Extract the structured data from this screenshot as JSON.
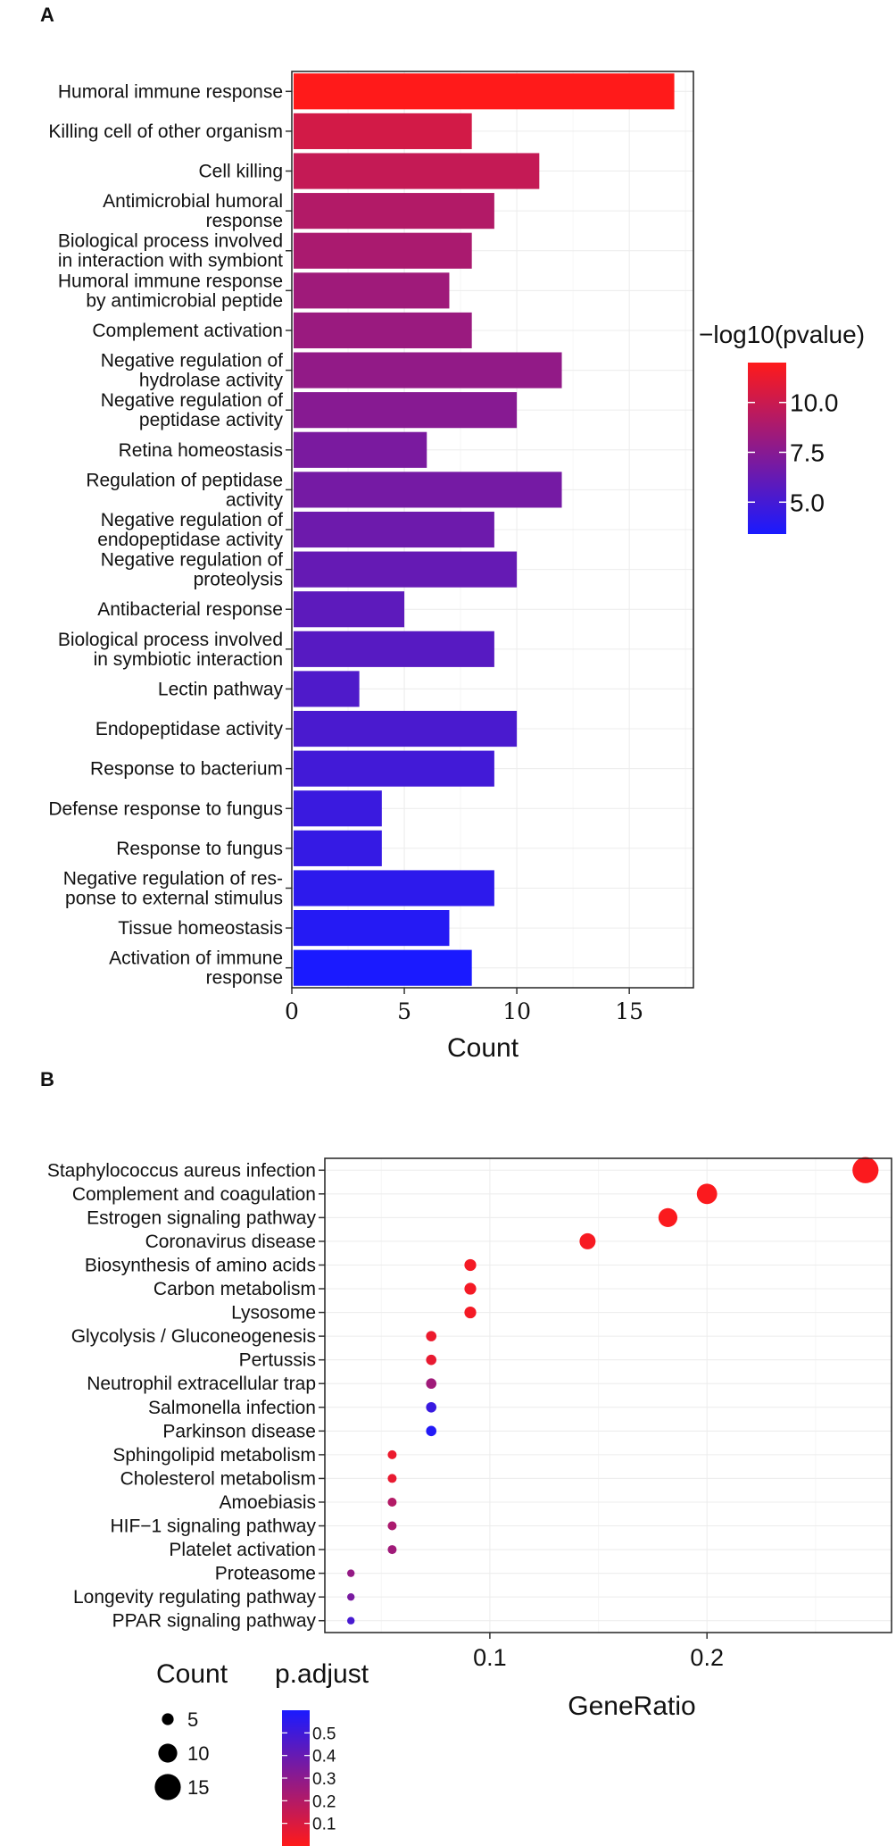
{
  "chart_data": [
    {
      "panel_label": "A",
      "type": "bar",
      "orientation": "horizontal",
      "categories": [
        [
          "Humoral immune response"
        ],
        [
          "Killing cell of other organism"
        ],
        [
          "Cell killing"
        ],
        [
          "Antimicrobial humoral",
          "response"
        ],
        [
          "Biological process involved",
          "in interaction with symbiont"
        ],
        [
          "Humoral immune response",
          "by antimicrobial peptide"
        ],
        [
          "Complement activation"
        ],
        [
          "Negative regulation of",
          "hydrolase activity"
        ],
        [
          "Negative regulation of",
          "peptidase activity"
        ],
        [
          "Retina homeostasis"
        ],
        [
          "Regulation of peptidase",
          "activity"
        ],
        [
          "Negative regulation of",
          "endopeptidase activity"
        ],
        [
          "Negative regulation of",
          "proteolysis"
        ],
        [
          "Antibacterial response"
        ],
        [
          "Biological process involved",
          "in symbiotic interaction"
        ],
        [
          "Lectin pathway"
        ],
        [
          "Endopeptidase activity"
        ],
        [
          "Response to bacterium"
        ],
        [
          "Defense response to fungus"
        ],
        [
          "Response to fungus"
        ],
        [
          "Negative regulation of res-",
          "ponse to external stimulus"
        ],
        [
          "Tissue homeostasis"
        ],
        [
          "Activation of immune",
          "response"
        ]
      ],
      "values": [
        17,
        8,
        11,
        9,
        8,
        7,
        8,
        12,
        10,
        6,
        12,
        9,
        10,
        5,
        9,
        3,
        10,
        9,
        4,
        4,
        9,
        7,
        8
      ],
      "color_values": [
        12.0,
        10.3,
        9.8,
        9.1,
        8.8,
        8.4,
        8.2,
        7.9,
        7.5,
        7.0,
        6.8,
        6.5,
        6.2,
        5.9,
        5.7,
        5.4,
        5.2,
        4.9,
        4.6,
        4.4,
        4.1,
        3.8,
        3.4
      ],
      "xlabel": "Count",
      "xlim": [
        0,
        17.85
      ],
      "xticks": [
        0,
        5,
        10,
        15
      ],
      "legend": {
        "title": "−log10(pvalue)",
        "range": [
          3.4,
          12.0
        ],
        "ticks": [
          5.0,
          7.5,
          10.0
        ],
        "tick_labels": [
          "5.0",
          "7.5",
          "10.0"
        ],
        "low_color": "#1a1aff",
        "high_color": "#ff1a1a"
      }
    },
    {
      "panel_label": "B",
      "type": "scatter",
      "categories": [
        "Staphylococcus aureus infection",
        "Complement and coagulation",
        "Estrogen signaling pathway",
        "Coronavirus disease",
        "Biosynthesis of amino acids",
        "Carbon metabolism",
        "Lysosome",
        "Glycolysis / Gluconeogenesis",
        "Pertussis",
        "Neutrophil extracellular trap",
        "Salmonella infection",
        "Parkinson disease",
        "Sphingolipid metabolism",
        "Cholesterol metabolism",
        "Amoebiasis",
        "HIF−1 signaling pathway",
        "Platelet activation",
        "Proteasome",
        "Longevity regulating pathway",
        "PPAR signaling pathway"
      ],
      "gene_ratio": [
        0.273,
        0.2,
        0.182,
        0.145,
        0.091,
        0.091,
        0.091,
        0.073,
        0.073,
        0.073,
        0.073,
        0.073,
        0.055,
        0.055,
        0.055,
        0.055,
        0.055,
        0.036,
        0.036,
        0.036
      ],
      "count": [
        15,
        11,
        10,
        8,
        5,
        5,
        5,
        4,
        4,
        4,
        4,
        4,
        3,
        3,
        3,
        3,
        3,
        2,
        2,
        2
      ],
      "p_adjust": [
        0.01,
        0.01,
        0.01,
        0.02,
        0.03,
        0.03,
        0.03,
        0.05,
        0.06,
        0.25,
        0.52,
        0.58,
        0.05,
        0.06,
        0.2,
        0.22,
        0.25,
        0.28,
        0.35,
        0.48
      ],
      "xlabel": "GeneRatio",
      "xlim": [
        0.024,
        0.285
      ],
      "xticks": [
        0.1,
        0.2
      ],
      "xtick_labels": [
        "0.1",
        "0.2"
      ],
      "size_legend": {
        "title": "Count",
        "values": [
          5,
          10,
          15
        ],
        "labels": [
          "5",
          "10",
          "15"
        ]
      },
      "color_legend": {
        "title": "p.adjust",
        "range": [
          0.0,
          0.6
        ],
        "ticks": [
          0.1,
          0.2,
          0.3,
          0.4,
          0.5
        ],
        "tick_labels": [
          "0.1",
          "0.2",
          "0.3",
          "0.4",
          "0.5"
        ],
        "low_color": "#ff1a1a",
        "high_color": "#1a1aff"
      }
    }
  ]
}
